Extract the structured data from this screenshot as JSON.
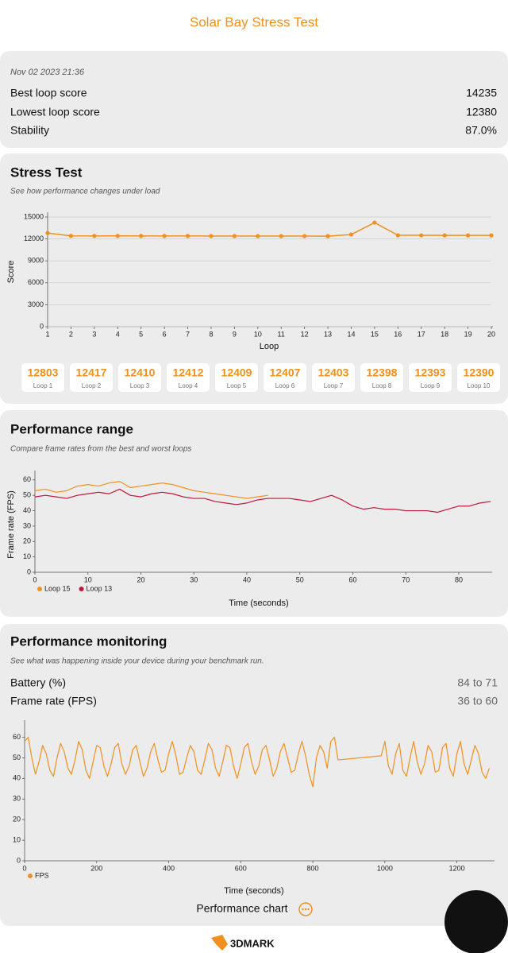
{
  "header": {
    "title": "Solar Bay Stress Test"
  },
  "summary": {
    "date": "Nov 02 2023 21:36",
    "rows": [
      [
        "Best loop score",
        "14235"
      ],
      [
        "Lowest loop score",
        "12380"
      ],
      [
        "Stability",
        "87.0%"
      ]
    ]
  },
  "stress_test": {
    "title": "Stress Test",
    "subtitle": "See how performance changes under load",
    "loop_labels": [
      "Loop 1",
      "Loop 2",
      "Loop 3",
      "Loop 4",
      "Loop 5",
      "Loop 6",
      "Loop 7",
      "Loop 8",
      "Loop 9",
      "Loop 10"
    ]
  },
  "performance_range": {
    "title": "Performance range",
    "subtitle": "Compare frame rates from the best and worst loops"
  },
  "performance_monitoring": {
    "title": "Performance monitoring",
    "subtitle": "See what was happening inside your device during your benchmark run.",
    "rows": [
      [
        "Battery (%)",
        "84 to 71"
      ],
      [
        "Frame rate (FPS)",
        "36 to 60"
      ]
    ]
  },
  "footer": {
    "button": "Performance chart",
    "brand": "3DMARK"
  },
  "chart_data": [
    {
      "type": "line",
      "xlabel": "Loop",
      "ylabel": "Score",
      "x": [
        1,
        2,
        3,
        4,
        5,
        6,
        7,
        8,
        9,
        10,
        11,
        12,
        13,
        14,
        15,
        16,
        17,
        18,
        19,
        20
      ],
      "values": [
        12803,
        12417,
        12410,
        12412,
        12409,
        12407,
        12403,
        12398,
        12393,
        12390,
        12388,
        12385,
        12380,
        12600,
        14235,
        12500,
        12495,
        12490,
        12487,
        12485
      ],
      "color": "#f0901e",
      "markers": true,
      "xlim": [
        1,
        20
      ],
      "ylim": [
        0,
        15000
      ],
      "xticks": [
        1,
        2,
        3,
        4,
        5,
        6,
        7,
        8,
        9,
        10,
        11,
        12,
        13,
        14,
        15,
        16,
        17,
        18,
        19,
        20
      ],
      "yticks": [
        0,
        3000,
        6000,
        9000,
        12000,
        15000
      ],
      "grid": true
    },
    {
      "type": "line",
      "xlabel": "Time (seconds)",
      "ylabel": "Frame rate (FPS)",
      "x": [
        0,
        2,
        4,
        6,
        8,
        10,
        12,
        14,
        16,
        18,
        20,
        22,
        24,
        26,
        28,
        30,
        32,
        34,
        36,
        38,
        40,
        42,
        44,
        46,
        48,
        50,
        52,
        54,
        56,
        58,
        60,
        62,
        64,
        66,
        68,
        70,
        72,
        74,
        76,
        78,
        80,
        82,
        84,
        86
      ],
      "series": [
        {
          "name": "Loop 15",
          "color": "#f0901e",
          "values": [
            53,
            54,
            52,
            53,
            56,
            57,
            56,
            58,
            59,
            55,
            56,
            57,
            58,
            57,
            55,
            53,
            52,
            51,
            50,
            49,
            48,
            49,
            50,
            null,
            null,
            null,
            null,
            null,
            null,
            null,
            null,
            null,
            null,
            null,
            null,
            null,
            null,
            null,
            null,
            null,
            null,
            null,
            null,
            null
          ]
        },
        {
          "name": "Loop 13",
          "color": "#c0163a",
          "values": [
            49,
            50,
            49,
            48,
            50,
            51,
            52,
            51,
            54,
            50,
            49,
            51,
            52,
            51,
            49,
            48,
            48,
            46,
            45,
            44,
            45,
            47,
            48,
            48,
            48,
            47,
            46,
            48,
            50,
            47,
            43,
            41,
            42,
            41,
            41,
            40,
            40,
            40,
            39,
            41,
            43,
            43,
            45,
            46
          ]
        }
      ],
      "xlim": [
        0,
        86
      ],
      "ylim": [
        0,
        63
      ],
      "xticks": [
        0,
        10,
        20,
        30,
        40,
        50,
        60,
        70,
        80
      ],
      "yticks": [
        0,
        10,
        20,
        30,
        40,
        50,
        60
      ],
      "grid": false
    },
    {
      "type": "line",
      "xlabel": "Time (seconds)",
      "x": [
        0,
        10,
        20,
        30,
        40,
        50,
        60,
        70,
        80,
        90,
        100,
        110,
        120,
        130,
        140,
        150,
        160,
        170,
        180,
        190,
        200,
        210,
        220,
        230,
        240,
        250,
        260,
        270,
        280,
        290,
        300,
        310,
        320,
        330,
        340,
        350,
        360,
        370,
        380,
        390,
        400,
        410,
        420,
        430,
        440,
        450,
        460,
        470,
        480,
        490,
        500,
        510,
        520,
        530,
        540,
        550,
        560,
        570,
        580,
        590,
        600,
        610,
        620,
        630,
        640,
        650,
        660,
        670,
        680,
        690,
        700,
        710,
        720,
        730,
        740,
        750,
        760,
        770,
        780,
        790,
        800,
        810,
        820,
        830,
        840,
        850,
        860,
        870,
        990,
        1000,
        1010,
        1020,
        1030,
        1040,
        1050,
        1060,
        1070,
        1080,
        1090,
        1100,
        1110,
        1120,
        1130,
        1140,
        1150,
        1160,
        1170,
        1180,
        1190,
        1200,
        1210,
        1220,
        1230,
        1240,
        1250,
        1260,
        1270,
        1280,
        1290
      ],
      "series": [
        {
          "name": "FPS",
          "color": "#f0901e",
          "values": [
            58,
            60,
            50,
            42,
            48,
            56,
            52,
            44,
            41,
            50,
            57,
            53,
            45,
            42,
            49,
            58,
            54,
            44,
            40,
            48,
            56,
            55,
            46,
            41,
            47,
            55,
            57,
            47,
            42,
            46,
            54,
            56,
            48,
            41,
            45,
            53,
            57,
            49,
            43,
            44,
            52,
            58,
            51,
            42,
            43,
            50,
            56,
            53,
            44,
            42,
            49,
            57,
            54,
            45,
            41,
            48,
            56,
            55,
            46,
            40,
            47,
            55,
            57,
            48,
            42,
            46,
            54,
            56,
            49,
            41,
            45,
            53,
            57,
            50,
            43,
            44,
            52,
            58,
            51,
            42,
            36,
            50,
            56,
            53,
            45,
            58,
            60,
            49,
            51,
            58,
            46,
            42,
            52,
            57,
            44,
            41,
            50,
            58,
            48,
            42,
            47,
            56,
            53,
            43,
            44,
            55,
            57,
            45,
            41,
            52,
            58,
            47,
            42,
            49,
            56,
            52,
            43,
            40,
            45
          ]
        }
      ],
      "xlim": [
        0,
        1300
      ],
      "ylim": [
        0,
        66
      ],
      "xticks": [
        0,
        200,
        400,
        600,
        800,
        1000,
        1200
      ],
      "yticks": [
        0,
        10,
        20,
        30,
        40,
        50,
        60
      ],
      "grid": false
    }
  ]
}
